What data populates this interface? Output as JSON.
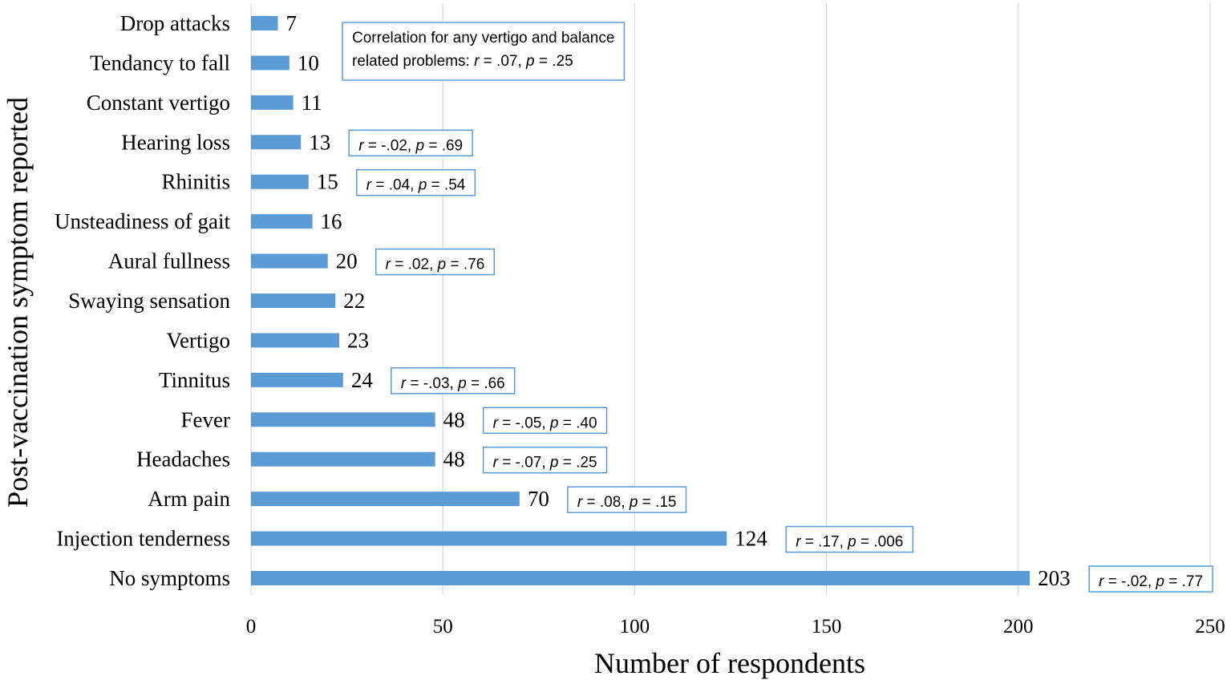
{
  "chart_data": {
    "type": "bar",
    "orientation": "horizontal",
    "categories": [
      "Drop attacks",
      "Tendancy to fall",
      "Constant vertigo",
      "Hearing loss",
      "Rhinitis",
      "Unsteadiness of gait",
      "Aural fullness",
      "Swaying sensation",
      "Vertigo",
      "Tinnitus",
      "Fever",
      "Headaches",
      "Arm pain",
      "Injection tenderness",
      "No symptoms"
    ],
    "values": [
      7,
      10,
      11,
      13,
      15,
      16,
      20,
      22,
      23,
      24,
      48,
      48,
      70,
      124,
      203
    ],
    "xlabel": "Number of respondents",
    "ylabel": "Post-vaccination symptom reported",
    "xlim": [
      0,
      250
    ],
    "xticks": [
      0,
      50,
      100,
      150,
      200,
      250
    ],
    "grid": true,
    "bar_color": "#5b9bd5",
    "annotations": [
      {
        "category": "Tendancy to fall",
        "lines": [
          "Correlation for any vertigo and balance",
          "related problems: r = .07, p = .25"
        ]
      },
      {
        "category": "Hearing loss",
        "lines": [
          "r = -.02, p = .69"
        ]
      },
      {
        "category": "Rhinitis",
        "lines": [
          "r = .04, p = .54"
        ]
      },
      {
        "category": "Aural fullness",
        "lines": [
          "r = .02, p = .76"
        ]
      },
      {
        "category": "Tinnitus",
        "lines": [
          "r = -.03, p = .66"
        ]
      },
      {
        "category": "Fever",
        "lines": [
          "r = -.05, p = .40"
        ]
      },
      {
        "category": "Headaches",
        "lines": [
          "r = -.07, p = .25"
        ]
      },
      {
        "category": "Arm pain",
        "lines": [
          "r = .08, p = .15"
        ]
      },
      {
        "category": "Injection tenderness",
        "lines": [
          "r = .17, p = .006"
        ]
      },
      {
        "category": "No symptoms",
        "lines": [
          "r = -.02, p = .77"
        ]
      }
    ]
  }
}
